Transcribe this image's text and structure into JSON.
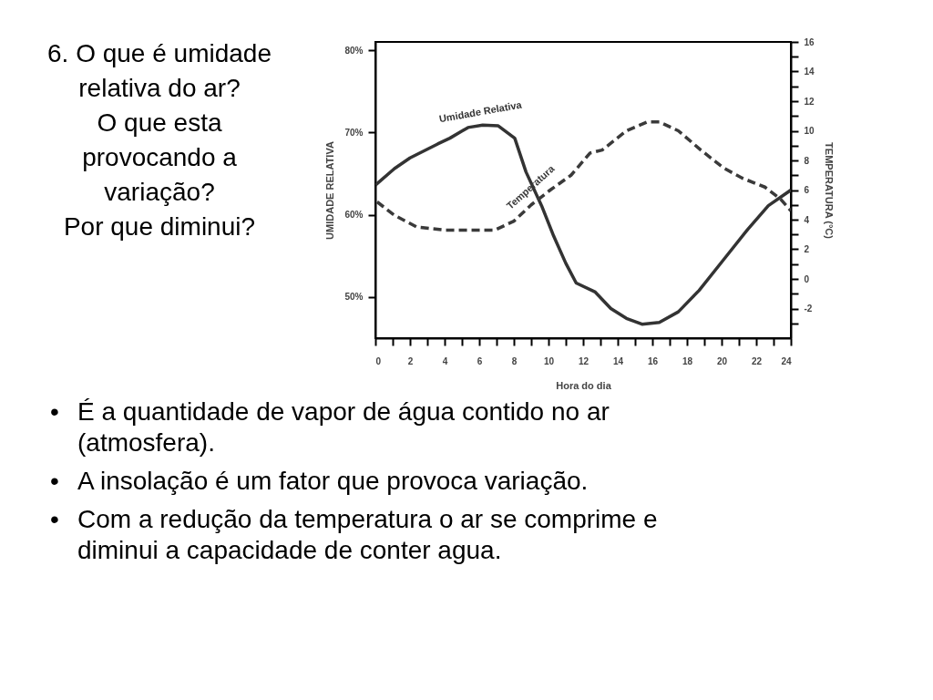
{
  "chart_data": {
    "type": "line",
    "title": "6. O que é umidade\nrelativa do ar?\nO que esta\nprovocando a\nvariação?\nPor que diminui?",
    "xlabel": "Hora do dia",
    "ylabel": "UMIDADE RELATIVA",
    "y2label": "TEMPERATURA (°C)",
    "xlim": [
      0,
      24
    ],
    "xticks": [
      0,
      {
        "value": 1,
        "label": null
      },
      2,
      {
        "value": 3,
        "label": null
      },
      4,
      {
        "value": 5,
        "label": null
      },
      6,
      {
        "value": 7,
        "label": null
      },
      8,
      {
        "value": 9,
        "label": null
      },
      10,
      {
        "value": 11,
        "label": null
      },
      12,
      {
        "value": 13,
        "label": null
      },
      14,
      {
        "value": 15,
        "label": null
      },
      16,
      {
        "value": 17,
        "label": null
      },
      18,
      {
        "value": 19,
        "label": null
      },
      20,
      {
        "value": 21,
        "label": null
      },
      22,
      {
        "value": 23,
        "label": null
      },
      24
    ],
    "ylim": [
      45,
      81
    ],
    "yticks": [
      {
        "value": 50,
        "label": "50%"
      },
      {
        "value": 60,
        "label": "60%"
      },
      {
        "value": 70,
        "label": "70%"
      },
      {
        "value": 80,
        "label": "80%"
      }
    ],
    "y2lim": [
      -4,
      16
    ],
    "y2ticks": [
      {
        "value": -3,
        "label": null
      },
      -2,
      {
        "value": -1,
        "label": null
      },
      0,
      {
        "value": 1,
        "label": null
      },
      2,
      {
        "value": 3,
        "label": null
      },
      4,
      {
        "value": 5,
        "label": null
      },
      6,
      {
        "value": 7,
        "label": null
      },
      8,
      {
        "value": 9,
        "label": null
      },
      10,
      {
        "value": 11,
        "label": null
      },
      12,
      {
        "value": 13,
        "label": null
      },
      14,
      {
        "value": 15,
        "label": null
      },
      16
    ],
    "series": [
      {
        "name": "Umidade Relativa",
        "color": "#333333",
        "line_style": "solid",
        "x": [
          0,
          1.1,
          2,
          3.6,
          4.3,
          5.35,
          6.2,
          7.1,
          8.05,
          8.7,
          9.6,
          10.3,
          11,
          11.6,
          12.7,
          13.6,
          14.5,
          15.4,
          16.4,
          17.5,
          18.7,
          20.1,
          21.5,
          22.7,
          24
        ],
        "values": [
          63.6,
          65.6,
          66.9,
          68.6,
          69.3,
          70.6,
          70.9,
          70.8,
          69.3,
          65.2,
          61.1,
          57.4,
          54.1,
          51.7,
          50.6,
          48.6,
          47.4,
          46.7,
          46.9,
          48.2,
          50.8,
          54.5,
          58.2,
          61.1,
          63.0
        ]
      },
      {
        "name": "Temperatura",
        "color": "#3a3a3a",
        "line_style": "dashed",
        "axis": "y2",
        "x": [
          0.1,
          1.1,
          2.4,
          4,
          5.4,
          6.9,
          8,
          9,
          10.1,
          11.3,
          12.4,
          13.1,
          14.5,
          15.7,
          16.4,
          17.5,
          18.8,
          20.1,
          21.2,
          22.5,
          23.4,
          24
        ],
        "values": [
          5.2,
          4.3,
          3.5,
          3.3,
          3.3,
          3.3,
          3.9,
          5,
          6,
          7,
          8.5,
          8.7,
          10,
          10.6,
          10.6,
          10,
          8.7,
          7.5,
          6.8,
          6.2,
          5.4,
          4.6
        ]
      }
    ],
    "annotations": [
      "• É a quantidade de vapor de água contido no ar (atmosfera).",
      "• A insolação é um fator que provoca variação.",
      "• Com a redução da temperatura o ar se comprime e diminui a capacidade de conter agua."
    ]
  }
}
